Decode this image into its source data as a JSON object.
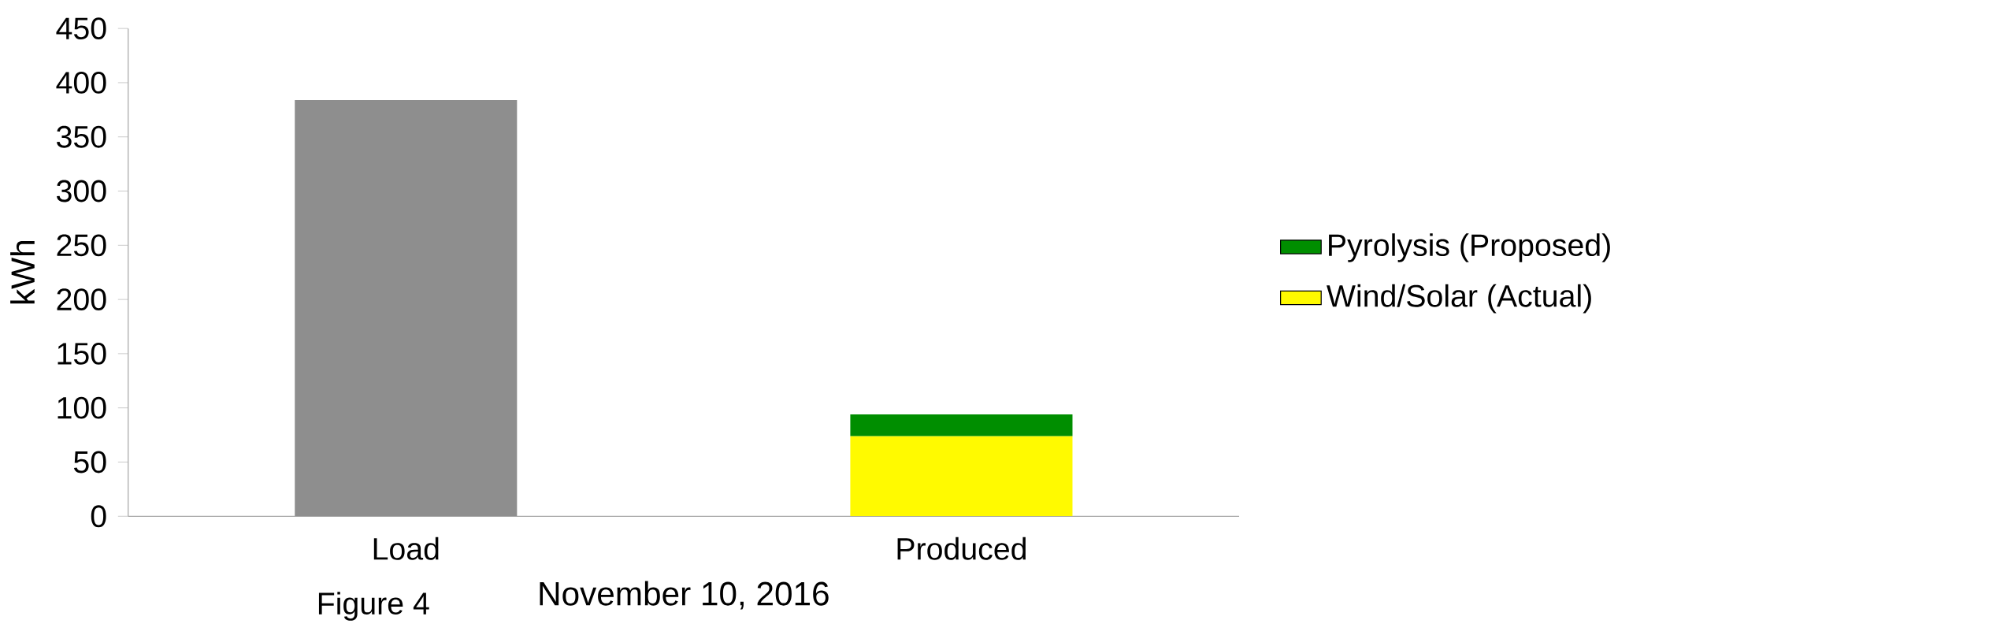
{
  "chart_data": {
    "type": "bar",
    "stacked": true,
    "ylabel": "kWh",
    "xlabel": "November 10, 2016",
    "categories": [
      "Load",
      "Produced"
    ],
    "series": [
      {
        "color": "#8e8e8e",
        "values": [
          384,
          null
        ]
      },
      {
        "name": "Wind/Solar (Actual)",
        "color": "#fffa00",
        "values": [
          null,
          74
        ]
      },
      {
        "name": "Pyrolysis (Proposed)",
        "color": "#008e00",
        "values": [
          null,
          20
        ]
      }
    ],
    "ylim": [
      0,
      450
    ],
    "yticks": [
      0,
      50,
      100,
      150,
      200,
      250,
      300,
      350,
      400,
      450
    ],
    "legend": "right",
    "grid": false,
    "annotations": [
      "Figure 4"
    ]
  }
}
